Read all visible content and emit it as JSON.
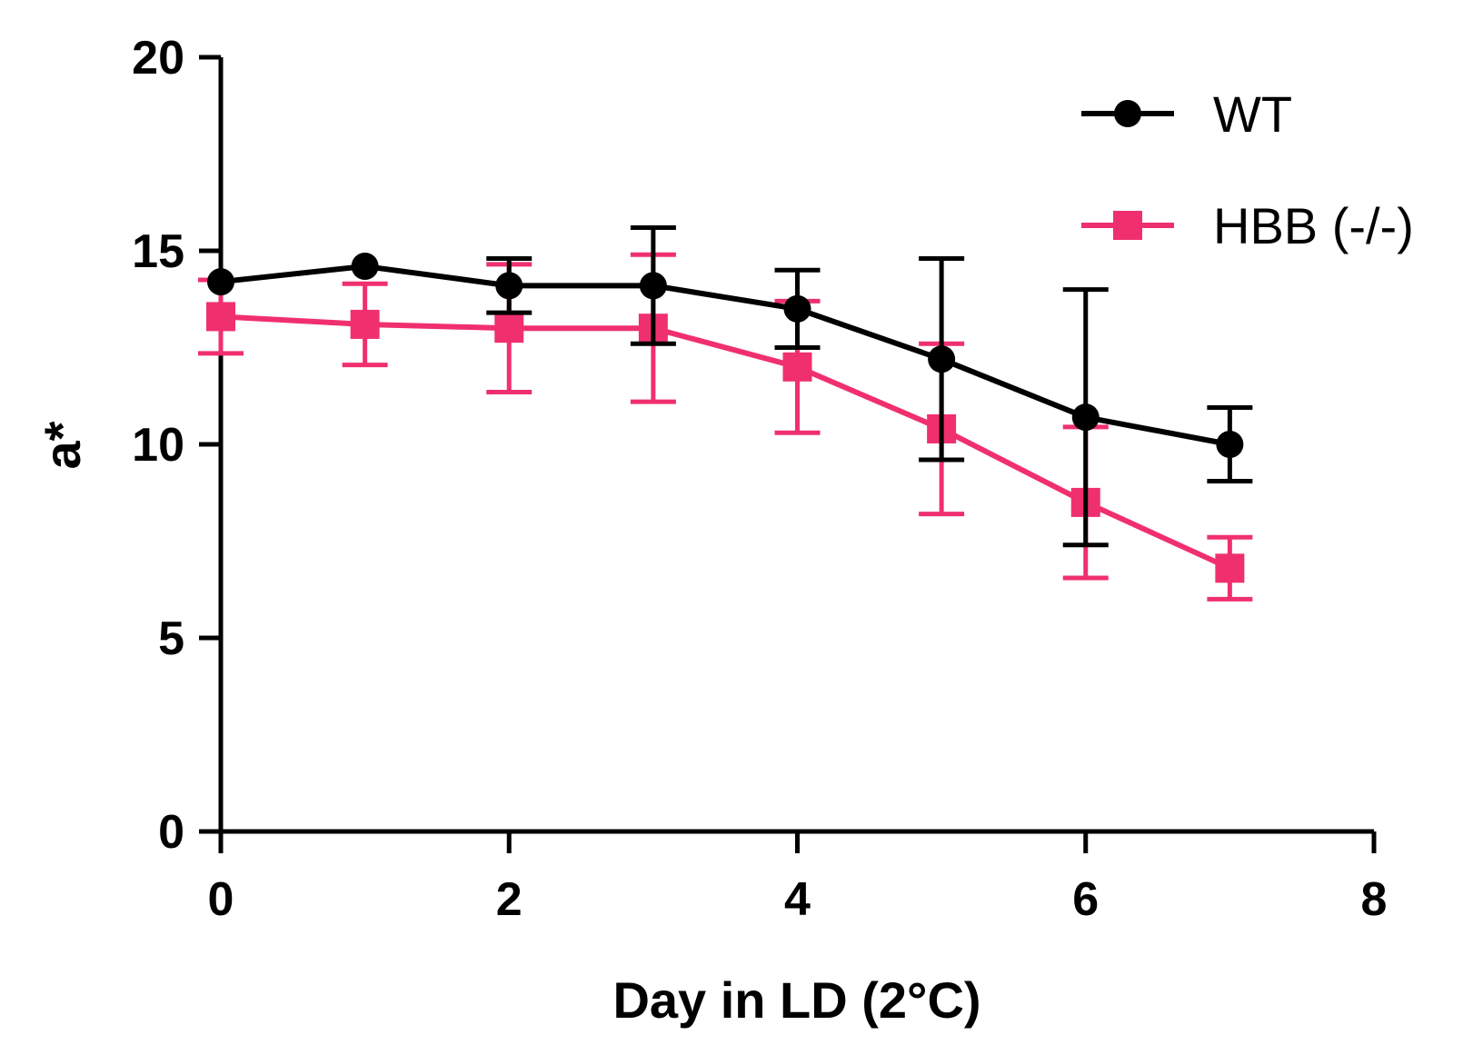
{
  "chart_data": {
    "type": "line",
    "title": "",
    "xlabel": "Day in LD (2°C)",
    "ylabel": "a*",
    "xlim": [
      0,
      8
    ],
    "ylim": [
      0,
      20
    ],
    "xticks": [
      0,
      2,
      4,
      6,
      8
    ],
    "yticks": [
      0,
      5,
      10,
      15,
      20
    ],
    "xtick_labels": [
      "0",
      "2",
      "4",
      "6",
      "8"
    ],
    "ytick_labels": [
      "0",
      "5",
      "10",
      "15",
      "20"
    ],
    "grid": false,
    "legend_position": "top-right",
    "x": [
      0,
      1,
      2,
      3,
      4,
      5,
      6,
      7
    ],
    "series": [
      {
        "name": "WT",
        "color": "#000000",
        "marker": "circle",
        "values": [
          14.2,
          14.6,
          14.1,
          14.1,
          13.5,
          12.2,
          10.7,
          10.0
        ],
        "errors": [
          0,
          0,
          0.7,
          1.5,
          1.0,
          2.6,
          3.3,
          0.95
        ]
      },
      {
        "name": "HBB (-/-)",
        "color": "#f0306e",
        "marker": "square",
        "values": [
          13.3,
          13.1,
          13.0,
          13.0,
          12.0,
          10.4,
          8.5,
          6.8
        ],
        "errors": [
          0.95,
          1.05,
          1.65,
          1.9,
          1.7,
          2.2,
          1.95,
          0.8
        ]
      }
    ]
  }
}
